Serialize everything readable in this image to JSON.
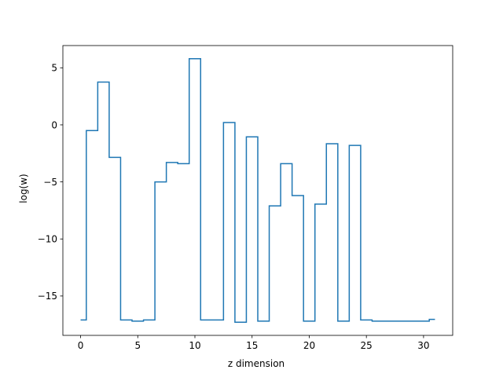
{
  "chart_data": {
    "type": "line",
    "drawstyle": "steps-mid",
    "title": "",
    "xlabel": "z dimension",
    "ylabel": "log(w)",
    "xlim": [
      -1.55,
      32.55
    ],
    "ylim": [
      -18.45,
      6.95
    ],
    "xticks": [
      0,
      5,
      10,
      15,
      20,
      25,
      30
    ],
    "yticks": [
      -15,
      -10,
      -5,
      0,
      5
    ],
    "ytick_labels": [
      "−15",
      "−10",
      "−5",
      "0",
      "5"
    ],
    "grid": false,
    "legend": "none",
    "color": "#1f77b4",
    "series": [
      {
        "x": [
          0,
          1,
          2,
          3,
          4,
          5,
          6,
          7,
          8,
          9,
          10,
          11,
          12,
          13,
          14,
          15,
          16,
          17,
          18,
          19,
          20,
          21,
          22,
          23,
          24,
          25,
          26,
          27,
          28,
          29,
          30,
          31
        ],
        "values": [
          -17.1,
          -0.5,
          3.75,
          -2.85,
          -17.1,
          -17.2,
          -17.1,
          -5.0,
          -3.3,
          -3.4,
          5.8,
          -17.1,
          -17.1,
          0.2,
          -17.3,
          -1.05,
          -17.2,
          -7.1,
          -3.4,
          -6.2,
          -17.2,
          -6.95,
          -1.65,
          -17.2,
          -1.8,
          -17.1,
          -17.2,
          -17.2,
          -17.2,
          -17.2,
          -17.2,
          -17.05
        ]
      }
    ]
  }
}
